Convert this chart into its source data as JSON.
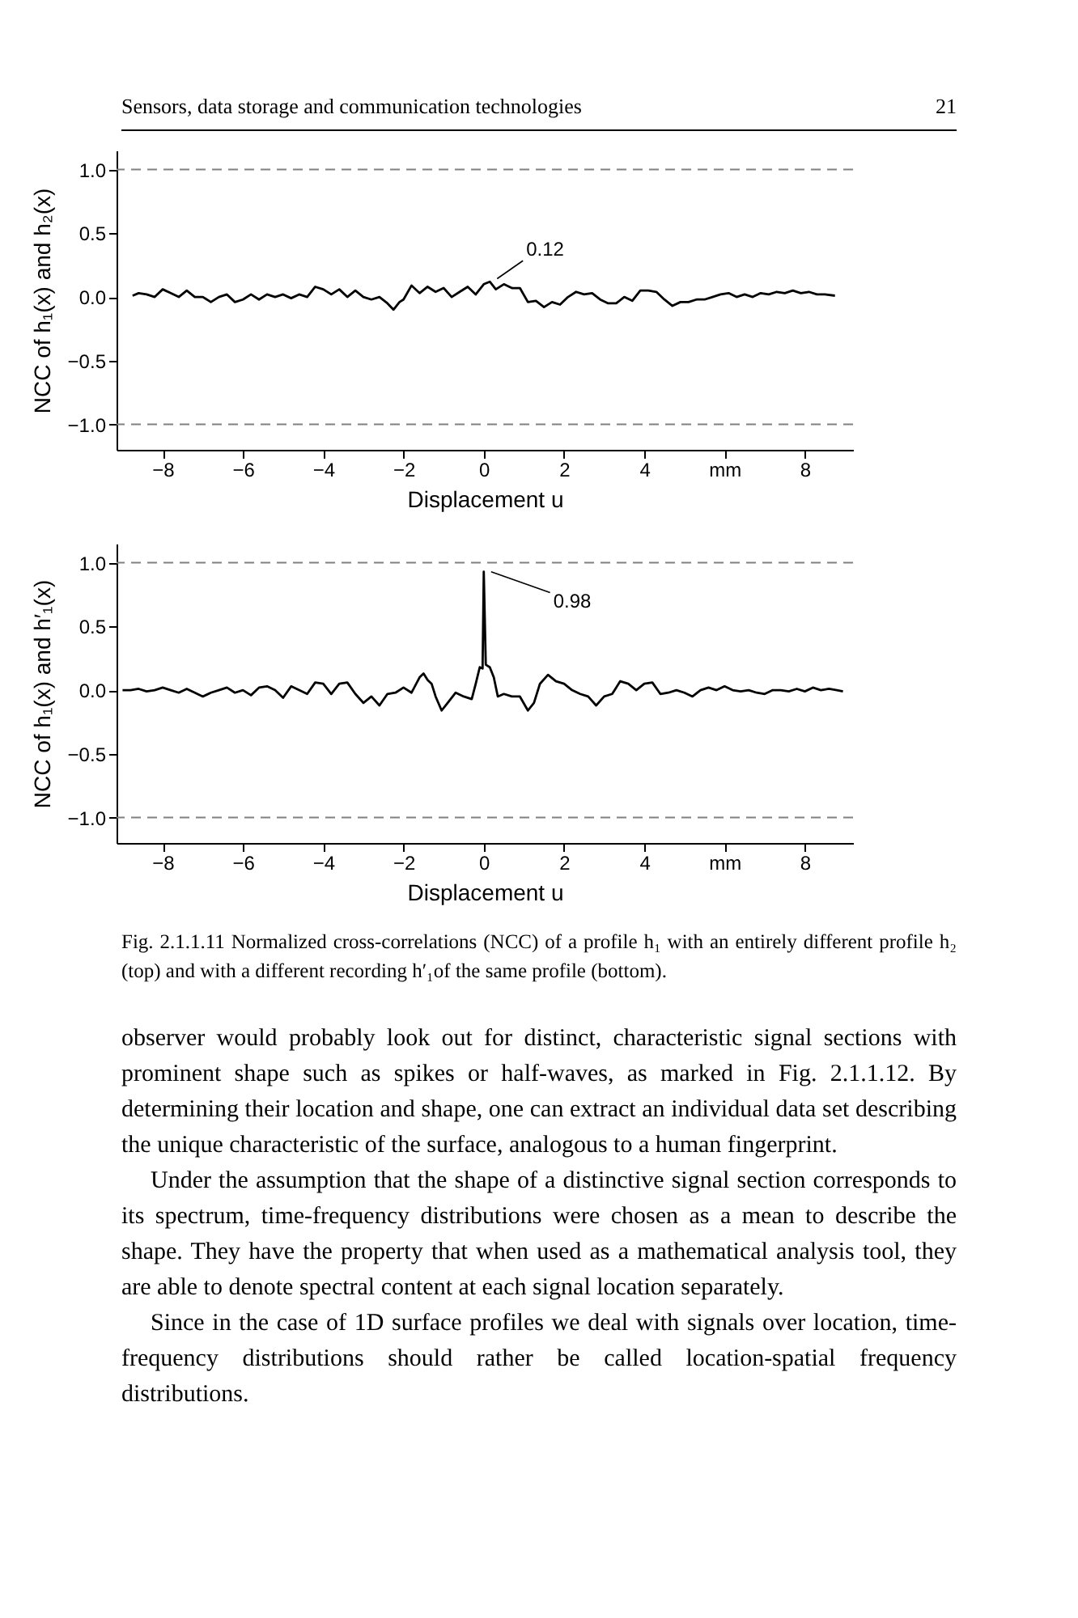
{
  "chart_data": [
    {
      "type": "line",
      "xlabel": "Displacement u",
      "ylabel": "NCC of h₁(x) and h₂(x)",
      "x": [
        -8.75,
        -8.6,
        -8.4,
        -8.2,
        -8.0,
        -7.8,
        -7.6,
        -7.4,
        -7.2,
        -7.0,
        -6.8,
        -6.6,
        -6.4,
        -6.2,
        -6.0,
        -5.8,
        -5.6,
        -5.4,
        -5.2,
        -5.0,
        -4.8,
        -4.6,
        -4.4,
        -4.2,
        -4.0,
        -3.8,
        -3.6,
        -3.4,
        -3.2,
        -3.0,
        -2.8,
        -2.6,
        -2.4,
        -2.25,
        -2.1,
        -2.0,
        -1.8,
        -1.6,
        -1.4,
        -1.2,
        -1.0,
        -0.8,
        -0.6,
        -0.4,
        -0.2,
        0.0,
        0.15,
        0.3,
        0.5,
        0.7,
        0.9,
        1.1,
        1.3,
        1.5,
        1.7,
        1.9,
        2.1,
        2.3,
        2.5,
        2.7,
        2.9,
        3.1,
        3.3,
        3.5,
        3.7,
        3.9,
        4.1,
        4.3,
        4.5,
        4.7,
        4.9,
        5.1,
        5.3,
        5.5,
        5.7,
        5.9,
        6.1,
        6.3,
        6.5,
        6.7,
        6.9,
        7.1,
        7.3,
        7.5,
        7.7,
        7.9,
        8.1,
        8.3,
        8.5,
        8.75
      ],
      "series": [
        {
          "color": "#000000",
          "values": [
            0.01,
            0.03,
            0.02,
            0.0,
            0.06,
            0.03,
            0.0,
            0.05,
            0.0,
            0.0,
            -0.04,
            0.0,
            0.02,
            -0.04,
            -0.02,
            0.02,
            -0.02,
            0.02,
            0.0,
            0.02,
            -0.01,
            0.02,
            0.0,
            0.08,
            0.06,
            0.02,
            0.06,
            0.0,
            0.05,
            0.0,
            -0.02,
            0.0,
            -0.05,
            -0.1,
            -0.04,
            -0.02,
            0.09,
            0.03,
            0.08,
            0.04,
            0.07,
            0.0,
            0.04,
            0.08,
            0.02,
            0.1,
            0.12,
            0.06,
            0.1,
            0.07,
            0.07,
            -0.04,
            -0.03,
            -0.08,
            -0.04,
            -0.06,
            0.0,
            0.04,
            0.02,
            0.03,
            -0.02,
            -0.05,
            -0.05,
            0.0,
            -0.03,
            0.05,
            0.05,
            0.04,
            -0.02,
            -0.07,
            -0.04,
            -0.04,
            -0.02,
            -0.02,
            0.0,
            0.02,
            0.03,
            0.0,
            0.02,
            0.0,
            0.03,
            0.02,
            0.04,
            0.03,
            0.05,
            0.03,
            0.04,
            0.02,
            0.02,
            0.01
          ]
        }
      ],
      "xlim": [
        -9.15,
        9.2
      ],
      "xticks": [
        {
          "value": -8,
          "label": "−8"
        },
        {
          "value": -6,
          "label": "−6"
        },
        {
          "value": -4,
          "label": "−4"
        },
        {
          "value": -2,
          "label": "−2"
        },
        0,
        2,
        4,
        {
          "value": 6,
          "label": "mm"
        },
        8
      ],
      "ylim": [
        -1.2,
        1.15
      ],
      "yticks": [
        {
          "value": -1,
          "label": "−1.0"
        },
        {
          "value": -0.5,
          "label": "−0.5"
        },
        {
          "value": 0,
          "label": "0.0"
        },
        0.5,
        {
          "value": 1,
          "label": "1.0"
        }
      ],
      "ref_lines": [
        {
          "axis": "y",
          "value": 1,
          "color": "#808080",
          "line_style": "dashed"
        },
        {
          "axis": "y",
          "value": -1,
          "color": "#808080",
          "line_style": "dashed"
        }
      ],
      "annotations": [
        "Sensors, data storage and communication technologies",
        "21",
        {
          "text": "0.12",
          "x": 0.15,
          "y": 0.12
        }
      ]
    },
    {
      "type": "line",
      "xlabel": "Displacement u",
      "ylabel": "NCC of h₁(x) and h′₁(x)",
      "x": [
        -9.0,
        -8.8,
        -8.6,
        -8.4,
        -8.2,
        -8.0,
        -7.8,
        -7.6,
        -7.4,
        -7.2,
        -7.0,
        -6.8,
        -6.6,
        -6.4,
        -6.2,
        -6.0,
        -5.8,
        -5.6,
        -5.4,
        -5.2,
        -5.0,
        -4.8,
        -4.6,
        -4.4,
        -4.2,
        -4.0,
        -3.8,
        -3.6,
        -3.4,
        -3.2,
        -3.0,
        -2.8,
        -2.6,
        -2.4,
        -2.2,
        -2.0,
        -1.8,
        -1.6,
        -1.5,
        -1.4,
        -1.3,
        -1.2,
        -1.05,
        -0.9,
        -0.7,
        -0.5,
        -0.3,
        -0.2,
        -0.1,
        -0.03,
        0,
        0.05,
        0.15,
        0.25,
        0.35,
        0.5,
        0.7,
        0.9,
        1.1,
        1.25,
        1.4,
        1.6,
        1.8,
        2.0,
        2.2,
        2.4,
        2.6,
        2.8,
        3.0,
        3.2,
        3.4,
        3.6,
        3.8,
        4.0,
        4.2,
        4.4,
        4.6,
        4.8,
        5.0,
        5.2,
        5.4,
        5.6,
        5.8,
        6.0,
        6.2,
        6.4,
        6.6,
        6.8,
        7.0,
        7.2,
        7.4,
        7.6,
        7.8,
        8.0,
        8.2,
        8.4,
        8.6,
        8.8,
        8.95
      ],
      "series": [
        {
          "color": "#000000",
          "values": [
            0.0,
            0.0,
            0.01,
            -0.01,
            0.0,
            0.02,
            0.0,
            -0.02,
            0.01,
            -0.02,
            -0.05,
            -0.02,
            0.0,
            0.02,
            -0.02,
            0.0,
            -0.04,
            0.02,
            0.03,
            0.0,
            -0.06,
            0.03,
            0.0,
            -0.03,
            0.06,
            0.05,
            -0.03,
            0.05,
            0.06,
            -0.03,
            -0.1,
            -0.05,
            -0.12,
            -0.03,
            -0.02,
            0.02,
            -0.02,
            0.1,
            0.13,
            0.08,
            0.05,
            -0.05,
            -0.16,
            -0.1,
            -0.02,
            -0.05,
            -0.07,
            0.05,
            0.18,
            0.17,
            0.93,
            0.2,
            0.18,
            0.1,
            -0.05,
            -0.03,
            -0.05,
            -0.05,
            -0.16,
            -0.1,
            0.05,
            0.12,
            0.07,
            0.05,
            0.0,
            -0.03,
            -0.05,
            -0.12,
            -0.05,
            -0.03,
            0.07,
            0.05,
            0.0,
            0.05,
            0.06,
            -0.03,
            -0.02,
            0.0,
            -0.02,
            -0.05,
            0.0,
            0.02,
            0.0,
            0.03,
            0.0,
            -0.01,
            0.0,
            -0.02,
            -0.03,
            0.0,
            0.0,
            -0.01,
            0.01,
            -0.01,
            0.02,
            0.0,
            0.01,
            0.0,
            -0.01
          ]
        }
      ],
      "xlim": [
        -9.15,
        9.2
      ],
      "xticks": [
        {
          "value": -8,
          "label": "−8"
        },
        {
          "value": -6,
          "label": "−6"
        },
        {
          "value": -4,
          "label": "−4"
        },
        {
          "value": -2,
          "label": "−2"
        },
        0,
        2,
        4,
        {
          "value": 6,
          "label": "mm"
        },
        8
      ],
      "ylim": [
        -1.2,
        1.15
      ],
      "yticks": [
        {
          "value": -1,
          "label": "−1.0"
        },
        {
          "value": -0.5,
          "label": "−0.5"
        },
        {
          "value": 0,
          "label": "0.0"
        },
        0.5,
        {
          "value": 1,
          "label": "1.0"
        }
      ],
      "ref_lines": [
        {
          "axis": "y",
          "value": 1,
          "color": "#808080",
          "line_style": "dashed"
        },
        {
          "axis": "y",
          "value": -1,
          "color": "#808080",
          "line_style": "dashed"
        }
      ],
      "annotations": [
        {
          "text": "0.98",
          "x": 0,
          "y": 0.93
        },
        "Fig. 2.1.1.11 Normalized cross-correlations (NCC) of a profile h₁ with an entirely different profile h₂ (top) and with a different recording h′₁of the same profile (bottom).",
        "observer would probably look out for distinct, characteristic signal sections with prominent shape such as spikes or half-waves, as marked in Fig. 2.1.1.12. By determining their location and shape, one can extract an individual data set describing the unique characteristic of the surface, analogous to a human fingerprint.",
        "Under the assumption that the shape of a distinctive signal section corresponds to its spectrum, time-frequency distributions were chosen as a mean to describe the shape. They have the property that when used as a mathematical analysis tool, they are able to denote spectral content at each signal location separately.",
        "Since in the case of 1D surface profiles we deal with signals over location, time-frequency distributions should rather be called location-spatial frequency distributions."
      ]
    }
  ]
}
